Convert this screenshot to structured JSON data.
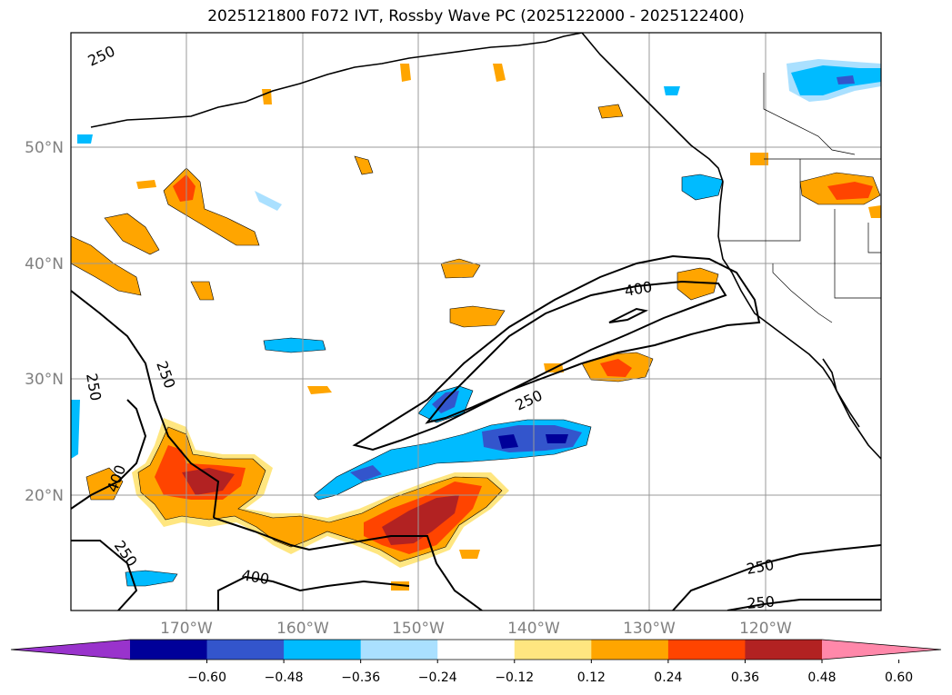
{
  "title": "2025121800 F072 IVT, Rossby Wave PC (2025122000 - 2025122400)",
  "map": {
    "lat_labels": [
      "50°N",
      "40°N",
      "30°N",
      "20°N"
    ],
    "lon_labels": [
      "170°W",
      "160°W",
      "150°W",
      "140°W",
      "130°W",
      "120°W"
    ],
    "contour_labels": [
      "250",
      "250",
      "250",
      "250",
      "400",
      "400",
      "250",
      "400",
      "250",
      "250"
    ]
  },
  "colorbar": {
    "ticks": [
      "−0.60",
      "−0.48",
      "−0.36",
      "−0.24",
      "−0.12",
      "0.12",
      "0.24",
      "0.36",
      "0.48",
      "0.60"
    ],
    "colors": [
      "#9933cc",
      "#000099",
      "#3355cc",
      "#00bbff",
      "#aae0ff",
      "#ffffff",
      "#ffe680",
      "#ffa500",
      "#ff4400",
      "#b22222",
      "#ff88aa"
    ]
  },
  "colors": {
    "neg_dark": "#000099",
    "neg_mid": "#3355cc",
    "neg": "#00bbff",
    "neg_light": "#aae0ff",
    "pos_light": "#ffe680",
    "pos": "#ffa500",
    "pos_mid": "#ff4400",
    "pos_dark": "#b22222"
  }
}
